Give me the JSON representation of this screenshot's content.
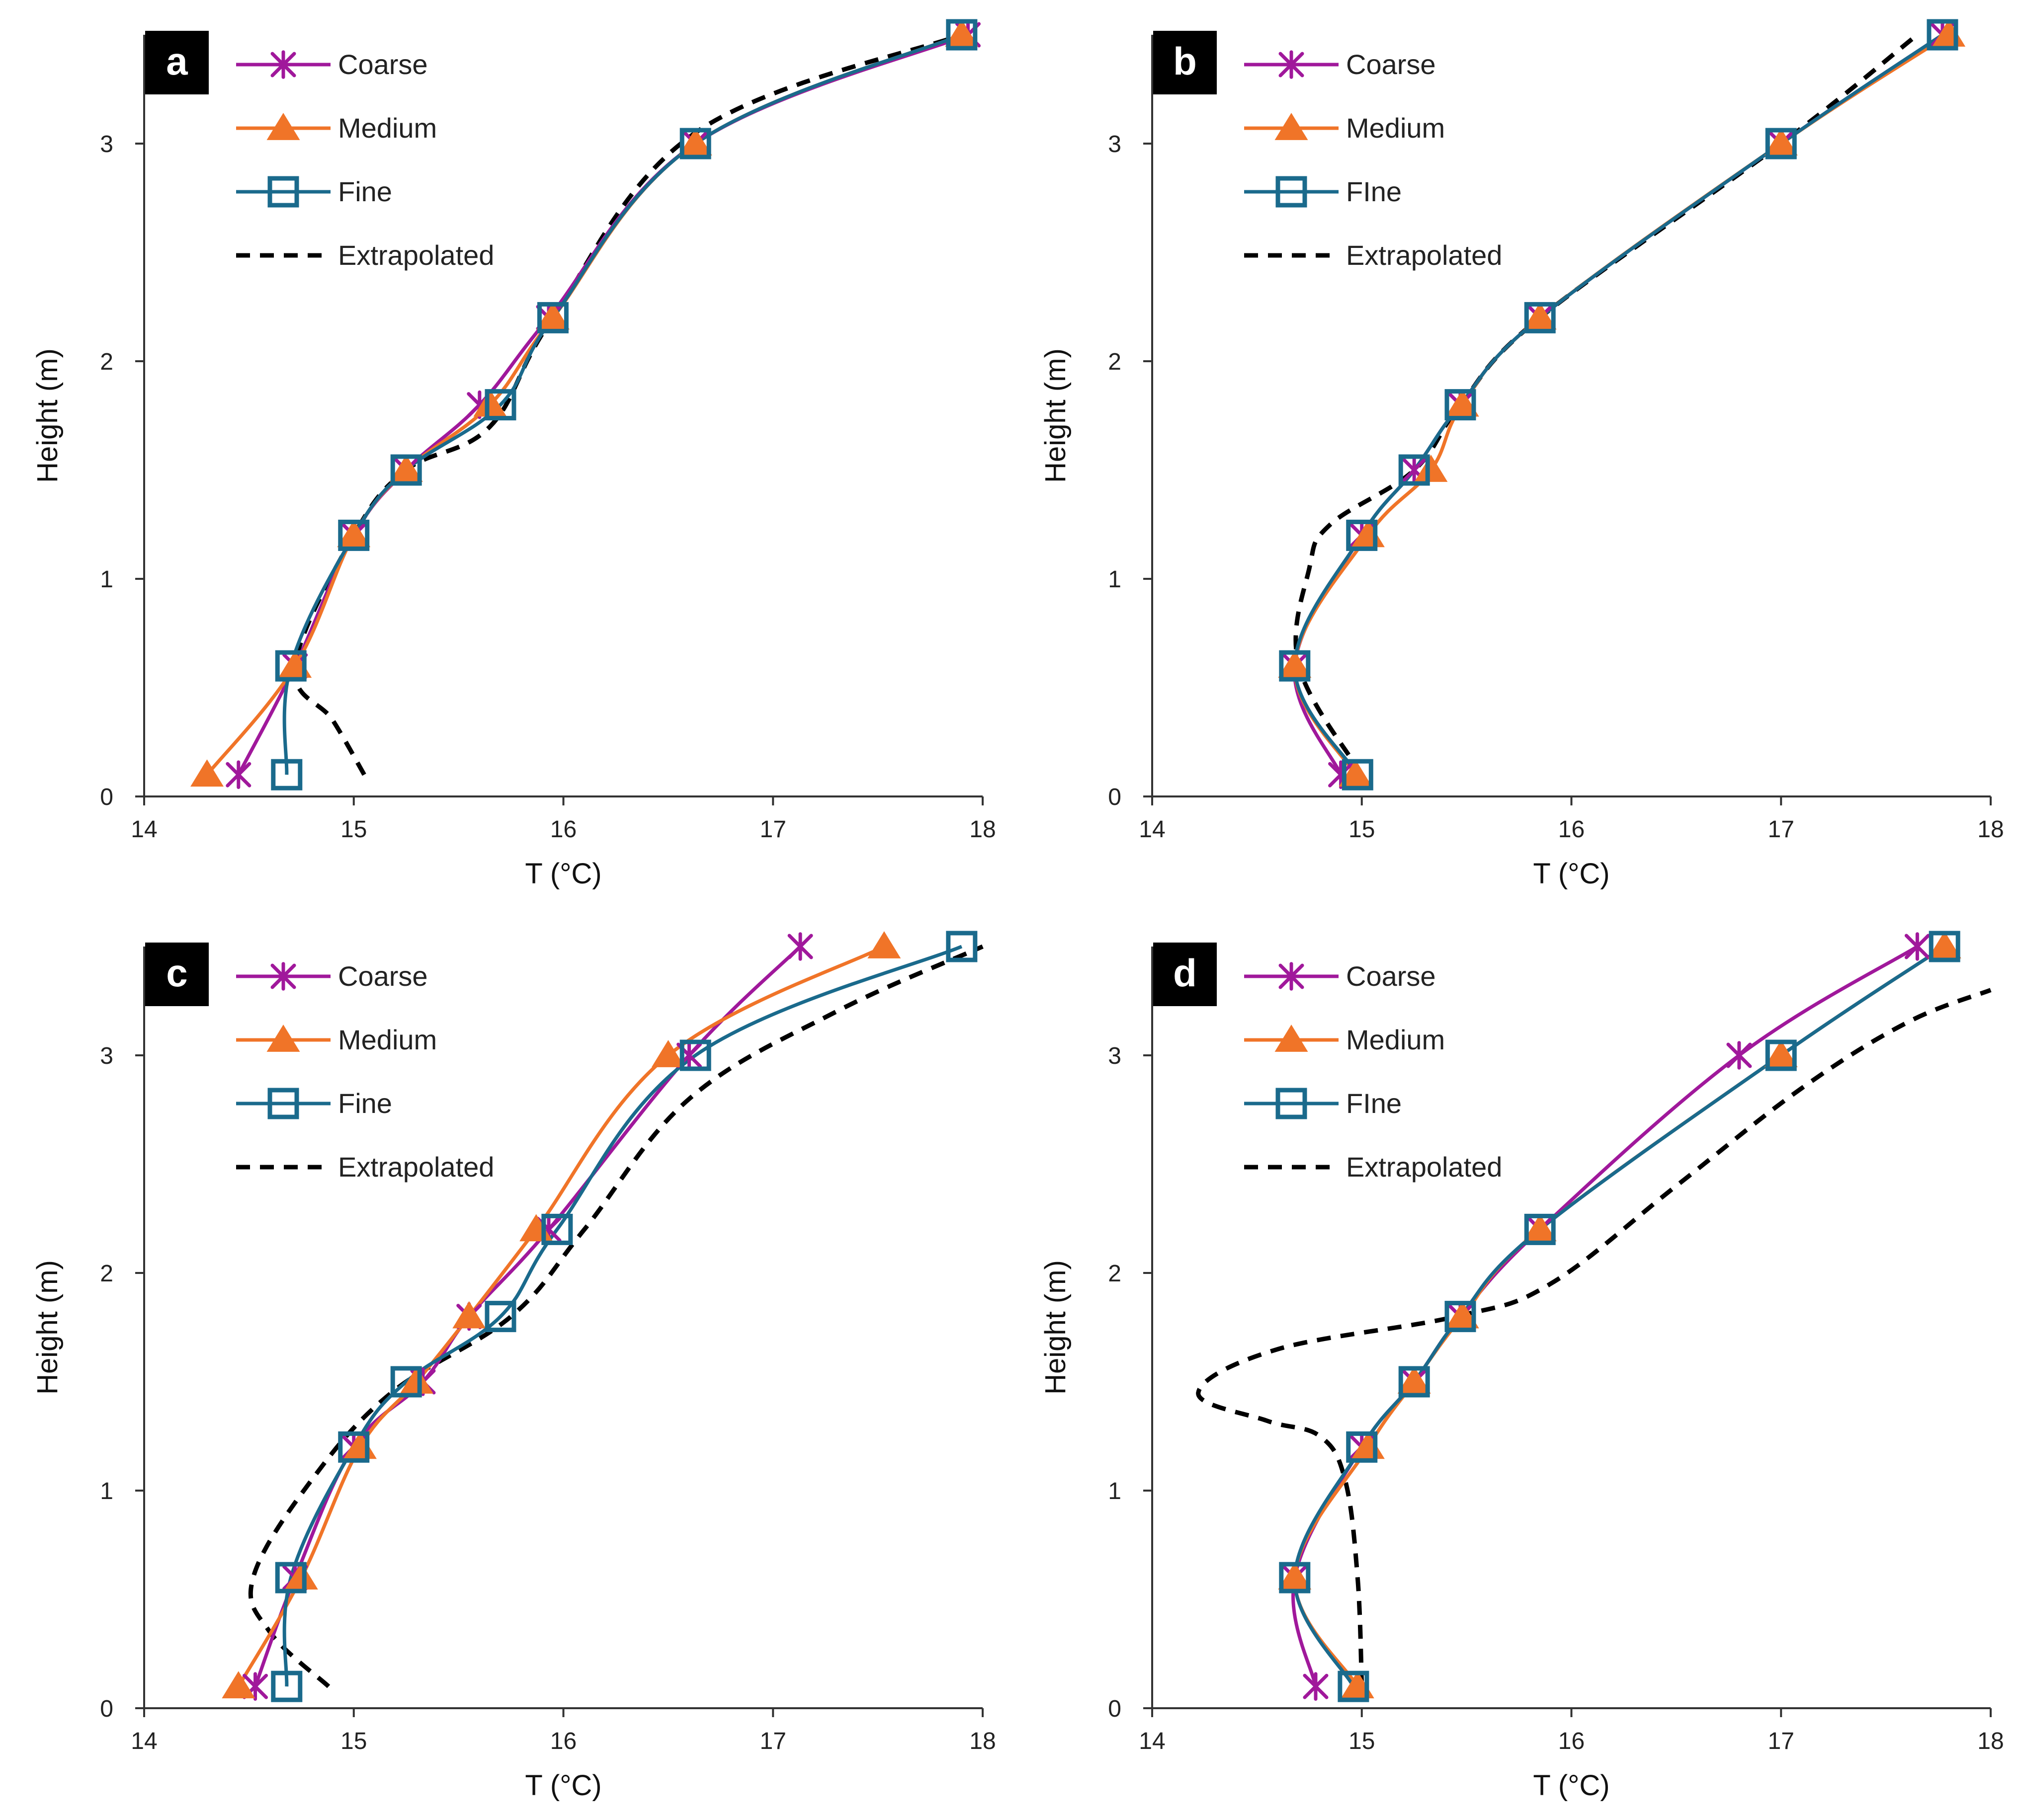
{
  "chart_data": [
    {
      "type": "line",
      "panel_label": "a",
      "xlabel": "T (°C)",
      "ylabel": "Height (m)",
      "xlim": [
        14,
        18
      ],
      "ylim": [
        0,
        3.5
      ],
      "xticks": [
        14,
        15,
        16,
        17,
        18
      ],
      "yticks": [
        0,
        1,
        2,
        3
      ],
      "legend": [
        "Coarse",
        "Medium",
        "Fine",
        "Extrapolated"
      ],
      "series": [
        {
          "name": "Coarse",
          "color": "#A0189B",
          "marker": "star",
          "points": [
            [
              14.45,
              0.1
            ],
            [
              14.72,
              0.6
            ],
            [
              15.0,
              1.2
            ],
            [
              15.25,
              1.5
            ],
            [
              15.6,
              1.8
            ],
            [
              15.93,
              2.2
            ],
            [
              16.63,
              3.0
            ],
            [
              17.93,
              3.5
            ]
          ]
        },
        {
          "name": "Medium",
          "color": "#F07428",
          "marker": "triangle",
          "points": [
            [
              14.3,
              0.1
            ],
            [
              14.72,
              0.6
            ],
            [
              15.0,
              1.2
            ],
            [
              15.25,
              1.5
            ],
            [
              15.65,
              1.8
            ],
            [
              15.95,
              2.2
            ],
            [
              16.63,
              3.0
            ],
            [
              17.9,
              3.5
            ]
          ]
        },
        {
          "name": "Fine",
          "color": "#1A6A8C",
          "marker": "square",
          "points": [
            [
              14.68,
              0.1
            ],
            [
              14.7,
              0.6
            ],
            [
              15.0,
              1.2
            ],
            [
              15.25,
              1.5
            ],
            [
              15.7,
              1.8
            ],
            [
              15.95,
              2.2
            ],
            [
              16.63,
              3.0
            ],
            [
              17.9,
              3.5
            ]
          ]
        },
        {
          "name": "Extrapolated",
          "color": "#000000",
          "marker": "none",
          "dashed": true,
          "points": [
            [
              15.05,
              0.1
            ],
            [
              14.9,
              0.35
            ],
            [
              14.72,
              0.6
            ],
            [
              15.0,
              1.2
            ],
            [
              15.25,
              1.5
            ],
            [
              15.65,
              1.7
            ],
            [
              15.95,
              2.2
            ],
            [
              16.63,
              3.05
            ],
            [
              17.9,
              3.5
            ]
          ]
        }
      ]
    },
    {
      "type": "line",
      "panel_label": "b",
      "xlabel": "T (°C)",
      "ylabel": "Height (m)",
      "xlim": [
        14,
        18
      ],
      "ylim": [
        0,
        3.5
      ],
      "xticks": [
        14,
        15,
        16,
        17,
        18
      ],
      "yticks": [
        0,
        1,
        2,
        3
      ],
      "legend": [
        "Coarse",
        "Medium",
        "FIne",
        "Extrapolated"
      ],
      "series": [
        {
          "name": "Coarse",
          "color": "#A0189B",
          "marker": "star",
          "points": [
            [
              14.9,
              0.1
            ],
            [
              14.68,
              0.6
            ],
            [
              15.0,
              1.2
            ],
            [
              15.25,
              1.5
            ],
            [
              15.47,
              1.8
            ],
            [
              15.85,
              2.2
            ],
            [
              17.0,
              3.0
            ],
            [
              17.77,
              3.5
            ]
          ]
        },
        {
          "name": "Medium",
          "color": "#F07428",
          "marker": "triangle",
          "points": [
            [
              14.97,
              0.1
            ],
            [
              14.68,
              0.6
            ],
            [
              15.03,
              1.2
            ],
            [
              15.33,
              1.5
            ],
            [
              15.48,
              1.8
            ],
            [
              15.85,
              2.2
            ],
            [
              17.0,
              3.0
            ],
            [
              17.8,
              3.5
            ]
          ]
        },
        {
          "name": "FIne",
          "color": "#1A6A8C",
          "marker": "square",
          "points": [
            [
              14.98,
              0.1
            ],
            [
              14.68,
              0.6
            ],
            [
              15.0,
              1.2
            ],
            [
              15.25,
              1.5
            ],
            [
              15.47,
              1.8
            ],
            [
              15.85,
              2.2
            ],
            [
              17.0,
              3.0
            ],
            [
              17.77,
              3.5
            ]
          ]
        },
        {
          "name": "Extrapolated",
          "color": "#000000",
          "marker": "none",
          "dashed": true,
          "points": [
            [
              15.0,
              0.1
            ],
            [
              14.7,
              0.6
            ],
            [
              14.75,
              1.05
            ],
            [
              14.85,
              1.25
            ],
            [
              15.25,
              1.5
            ],
            [
              15.47,
              1.8
            ],
            [
              15.85,
              2.2
            ],
            [
              17.0,
              3.0
            ],
            [
              17.65,
              3.5
            ]
          ]
        }
      ]
    },
    {
      "type": "line",
      "panel_label": "c",
      "xlabel": "T (°C)",
      "ylabel": "Height (m)",
      "xlim": [
        14,
        18
      ],
      "ylim": [
        0,
        3.5
      ],
      "xticks": [
        14,
        15,
        16,
        17,
        18
      ],
      "yticks": [
        0,
        1,
        2,
        3
      ],
      "legend": [
        "Coarse",
        "Medium",
        "Fine",
        "Extrapolated"
      ],
      "series": [
        {
          "name": "Coarse",
          "color": "#A0189B",
          "marker": "star",
          "points": [
            [
              14.53,
              0.1
            ],
            [
              14.72,
              0.6
            ],
            [
              15.0,
              1.2
            ],
            [
              15.33,
              1.5
            ],
            [
              15.55,
              1.8
            ],
            [
              15.93,
              2.2
            ],
            [
              16.6,
              3.0
            ],
            [
              17.13,
              3.5
            ]
          ]
        },
        {
          "name": "Medium",
          "color": "#F07428",
          "marker": "triangle",
          "points": [
            [
              14.45,
              0.1
            ],
            [
              14.75,
              0.6
            ],
            [
              15.03,
              1.2
            ],
            [
              15.3,
              1.5
            ],
            [
              15.55,
              1.8
            ],
            [
              15.87,
              2.2
            ],
            [
              16.5,
              3.0
            ],
            [
              17.53,
              3.5
            ]
          ]
        },
        {
          "name": "Fine",
          "color": "#1A6A8C",
          "marker": "square",
          "points": [
            [
              14.68,
              0.1
            ],
            [
              14.7,
              0.6
            ],
            [
              15.0,
              1.2
            ],
            [
              15.25,
              1.5
            ],
            [
              15.7,
              1.8
            ],
            [
              15.97,
              2.2
            ],
            [
              16.63,
              3.0
            ],
            [
              17.9,
              3.5
            ]
          ]
        },
        {
          "name": "Extrapolated",
          "color": "#000000",
          "marker": "none",
          "dashed": true,
          "points": [
            [
              14.88,
              0.1
            ],
            [
              14.6,
              0.35
            ],
            [
              14.52,
              0.6
            ],
            [
              14.8,
              1.05
            ],
            [
              15.18,
              1.45
            ],
            [
              15.75,
              1.8
            ],
            [
              16.1,
              2.2
            ],
            [
              16.6,
              2.8
            ],
            [
              17.3,
              3.2
            ],
            [
              18.0,
              3.5
            ]
          ]
        }
      ]
    },
    {
      "type": "line",
      "panel_label": "d",
      "xlabel": "T (°C)",
      "ylabel": "Height (m)",
      "xlim": [
        14,
        18
      ],
      "ylim": [
        0,
        3.5
      ],
      "xticks": [
        14,
        15,
        16,
        17,
        18
      ],
      "yticks": [
        0,
        1,
        2,
        3
      ],
      "legend": [
        "Coarse",
        "Medium",
        "FIne",
        "Extrapolated"
      ],
      "series": [
        {
          "name": "Coarse",
          "color": "#A0189B",
          "marker": "star",
          "points": [
            [
              14.78,
              0.1
            ],
            [
              14.68,
              0.6
            ],
            [
              15.0,
              1.2
            ],
            [
              15.25,
              1.5
            ],
            [
              15.47,
              1.8
            ],
            [
              15.85,
              2.2
            ],
            [
              16.8,
              3.0
            ],
            [
              17.65,
              3.5
            ]
          ]
        },
        {
          "name": "Medium",
          "color": "#F07428",
          "marker": "triangle",
          "points": [
            [
              14.98,
              0.1
            ],
            [
              14.68,
              0.6
            ],
            [
              15.03,
              1.2
            ],
            [
              15.25,
              1.5
            ],
            [
              15.48,
              1.8
            ],
            [
              15.85,
              2.2
            ],
            [
              17.0,
              3.0
            ],
            [
              17.78,
              3.5
            ]
          ]
        },
        {
          "name": "FIne",
          "color": "#1A6A8C",
          "marker": "square",
          "points": [
            [
              14.96,
              0.1
            ],
            [
              14.68,
              0.6
            ],
            [
              15.0,
              1.2
            ],
            [
              15.25,
              1.5
            ],
            [
              15.47,
              1.8
            ],
            [
              15.85,
              2.2
            ],
            [
              17.0,
              3.0
            ],
            [
              17.78,
              3.5
            ]
          ]
        },
        {
          "name": "Extrapolated",
          "color": "#000000",
          "marker": "none",
          "dashed": true,
          "points": [
            [
              15.0,
              0.1
            ],
            [
              14.98,
              0.6
            ],
            [
              14.92,
              1.05
            ],
            [
              14.8,
              1.25
            ],
            [
              14.55,
              1.32
            ],
            [
              14.22,
              1.45
            ],
            [
              14.6,
              1.65
            ],
            [
              15.45,
              1.8
            ],
            [
              15.9,
              1.95
            ],
            [
              16.5,
              2.4
            ],
            [
              17.1,
              2.85
            ],
            [
              17.6,
              3.15
            ],
            [
              18.0,
              3.3
            ]
          ]
        }
      ]
    }
  ]
}
